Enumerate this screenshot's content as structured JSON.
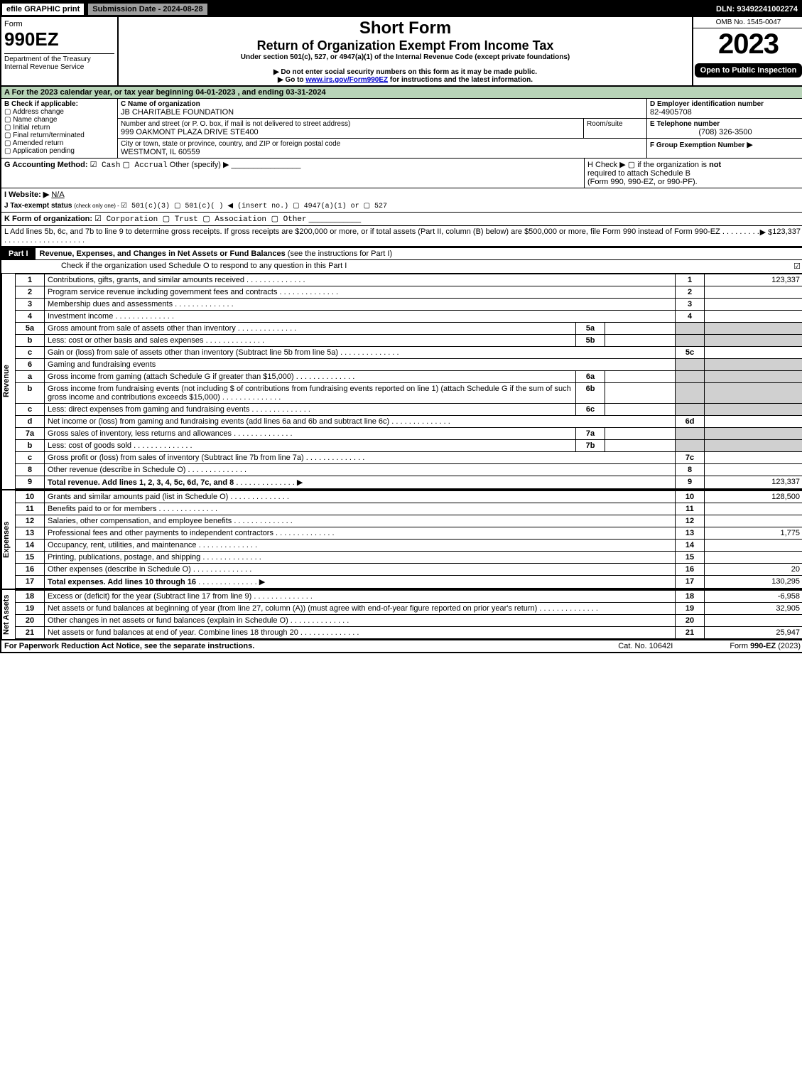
{
  "topbar": {
    "efile": "efile GRAPHIC print",
    "submission": "Submission Date - 2024-08-28",
    "dln": "DLN: 93492241002274"
  },
  "header": {
    "form_word": "Form",
    "form_no": "990EZ",
    "dept": "Department of the Treasury",
    "irs": "Internal Revenue Service",
    "title1": "Short Form",
    "title2": "Return of Organization Exempt From Income Tax",
    "under": "Under section 501(c), 527, or 4947(a)(1) of the Internal Revenue Code (except private foundations)",
    "warn": "▶ Do not enter social security numbers on this form as it may be made public.",
    "goto_pre": "▶ Go to ",
    "goto_link": "www.irs.gov/Form990EZ",
    "goto_post": " for instructions and the latest information.",
    "omb": "OMB No. 1545-0047",
    "year": "2023",
    "open": "Open to Public Inspection"
  },
  "A": "A  For the 2023 calendar year, or tax year beginning 04-01-2023 , and ending 03-31-2024",
  "B": {
    "title": "B  Check if applicable:",
    "opts": [
      "Address change",
      "Name change",
      "Initial return",
      "Final return/terminated",
      "Amended return",
      "Application pending"
    ]
  },
  "C": {
    "label": "C Name of organization",
    "name": "JB CHARITABLE FOUNDATION",
    "street_lbl": "Number and street (or P. O. box, if mail is not delivered to street address)",
    "room_lbl": "Room/suite",
    "street": "999 OAKMONT PLAZA DRIVE STE400",
    "city_lbl": "City or town, state or province, country, and ZIP or foreign postal code",
    "city": "WESTMONT, IL  60559"
  },
  "D": {
    "label": "D Employer identification number",
    "ein": "82-4905708"
  },
  "E": {
    "label": "E Telephone number",
    "phone": "(708) 326-3500"
  },
  "F": {
    "label": "F Group Exemption Number",
    "arrow": "▶"
  },
  "G": {
    "label": "G Accounting Method:",
    "cash": "☑ Cash",
    "accrual": "▢ Accrual",
    "other": "Other (specify) ▶"
  },
  "H": {
    "text1": "H   Check ▶  ▢  if the organization is ",
    "not": "not",
    "text2": "required to attach Schedule B",
    "text3": "(Form 990, 990-EZ, or 990-PF)."
  },
  "I": {
    "label": "I Website: ▶",
    "val": "N/A"
  },
  "J": {
    "pre": "J Tax-exempt status ",
    "sub": "(check only one) - ",
    "opts": "☑ 501(c)(3)  ▢ 501(c)(  ) ◀ (insert no.)  ▢ 4947(a)(1) or  ▢ 527"
  },
  "K": {
    "label": "K Form of organization:",
    "opts": "☑ Corporation  ▢ Trust  ▢ Association  ▢ Other"
  },
  "L": {
    "text": "L Add lines 5b, 6c, and 7b to line 9 to determine gross receipts. If gross receipts are $200,000 or more, or if total assets (Part II, column (B) below) are $500,000 or more, file Form 990 instead of Form 990-EZ",
    "arrow": "▶ $",
    "amount": "123,337"
  },
  "partI": {
    "tag": "Part I",
    "title": "Revenue, Expenses, and Changes in Net Assets or Fund Balances ",
    "paren": "(see the instructions for Part I)",
    "check": "Check if the organization used Schedule O to respond to any question in this Part I",
    "box": "☑"
  },
  "sections": {
    "rev": "Revenue",
    "exp": "Expenses",
    "na": "Net Assets"
  },
  "lines": {
    "1": {
      "n": "1",
      "d": "Contributions, gifts, grants, and similar amounts received",
      "b": "1",
      "v": "123,337"
    },
    "2": {
      "n": "2",
      "d": "Program service revenue including government fees and contracts",
      "b": "2",
      "v": ""
    },
    "3": {
      "n": "3",
      "d": "Membership dues and assessments",
      "b": "3",
      "v": ""
    },
    "4": {
      "n": "4",
      "d": "Investment income",
      "b": "4",
      "v": ""
    },
    "5a": {
      "n": "5a",
      "d": "Gross amount from sale of assets other than inventory",
      "sb": "5a"
    },
    "5b": {
      "n": "b",
      "d": "Less: cost or other basis and sales expenses",
      "sb": "5b"
    },
    "5c": {
      "n": "c",
      "d": "Gain or (loss) from sale of assets other than inventory (Subtract line 5b from line 5a)",
      "b": "5c",
      "v": ""
    },
    "6": {
      "n": "6",
      "d": "Gaming and fundraising events"
    },
    "6a": {
      "n": "a",
      "d": "Gross income from gaming (attach Schedule G if greater than $15,000)",
      "sb": "6a"
    },
    "6b": {
      "n": "b",
      "d": "Gross income from fundraising events (not including $                       of contributions from fundraising events reported on line 1) (attach Schedule G if the sum of such gross income and contributions exceeds $15,000)",
      "sb": "6b"
    },
    "6c": {
      "n": "c",
      "d": "Less: direct expenses from gaming and fundraising events",
      "sb": "6c"
    },
    "6d": {
      "n": "d",
      "d": "Net income or (loss) from gaming and fundraising events (add lines 6a and 6b and subtract line 6c)",
      "b": "6d",
      "v": ""
    },
    "7a": {
      "n": "7a",
      "d": "Gross sales of inventory, less returns and allowances",
      "sb": "7a"
    },
    "7b": {
      "n": "b",
      "d": "Less: cost of goods sold",
      "sb": "7b"
    },
    "7c": {
      "n": "c",
      "d": "Gross profit or (loss) from sales of inventory (Subtract line 7b from line 7a)",
      "b": "7c",
      "v": ""
    },
    "8": {
      "n": "8",
      "d": "Other revenue (describe in Schedule O)",
      "b": "8",
      "v": ""
    },
    "9": {
      "n": "9",
      "d": "Total revenue. Add lines 1, 2, 3, 4, 5c, 6d, 7c, and 8",
      "b": "9",
      "v": "123,337",
      "bold": true,
      "arrow": "▶"
    },
    "10": {
      "n": "10",
      "d": "Grants and similar amounts paid (list in Schedule O)",
      "b": "10",
      "v": "128,500"
    },
    "11": {
      "n": "11",
      "d": "Benefits paid to or for members",
      "b": "11",
      "v": ""
    },
    "12": {
      "n": "12",
      "d": "Salaries, other compensation, and employee benefits",
      "b": "12",
      "v": ""
    },
    "13": {
      "n": "13",
      "d": "Professional fees and other payments to independent contractors",
      "b": "13",
      "v": "1,775"
    },
    "14": {
      "n": "14",
      "d": "Occupancy, rent, utilities, and maintenance",
      "b": "14",
      "v": ""
    },
    "15": {
      "n": "15",
      "d": "Printing, publications, postage, and shipping",
      "b": "15",
      "v": ""
    },
    "16": {
      "n": "16",
      "d": "Other expenses (describe in Schedule O)",
      "b": "16",
      "v": "20"
    },
    "17": {
      "n": "17",
      "d": "Total expenses. Add lines 10 through 16",
      "b": "17",
      "v": "130,295",
      "bold": true,
      "arrow": "▶"
    },
    "18": {
      "n": "18",
      "d": "Excess or (deficit) for the year (Subtract line 17 from line 9)",
      "b": "18",
      "v": "-6,958"
    },
    "19": {
      "n": "19",
      "d": "Net assets or fund balances at beginning of year (from line 27, column (A)) (must agree with end-of-year figure reported on prior year's return)",
      "b": "19",
      "v": "32,905"
    },
    "20": {
      "n": "20",
      "d": "Other changes in net assets or fund balances (explain in Schedule O)",
      "b": "20",
      "v": ""
    },
    "21": {
      "n": "21",
      "d": "Net assets or fund balances at end of year. Combine lines 18 through 20",
      "b": "21",
      "v": "25,947"
    }
  },
  "footer": {
    "left": "For Paperwork Reduction Act Notice, see the separate instructions.",
    "mid": "Cat. No. 10642I",
    "right_pre": "Form ",
    "right_bold": "990-EZ",
    "right_post": " (2023)"
  },
  "colors": {
    "green": "#b8d4b8",
    "gray": "#d0d0d0",
    "link": "#0000cc",
    "headerbar": "#9e9e9e"
  }
}
